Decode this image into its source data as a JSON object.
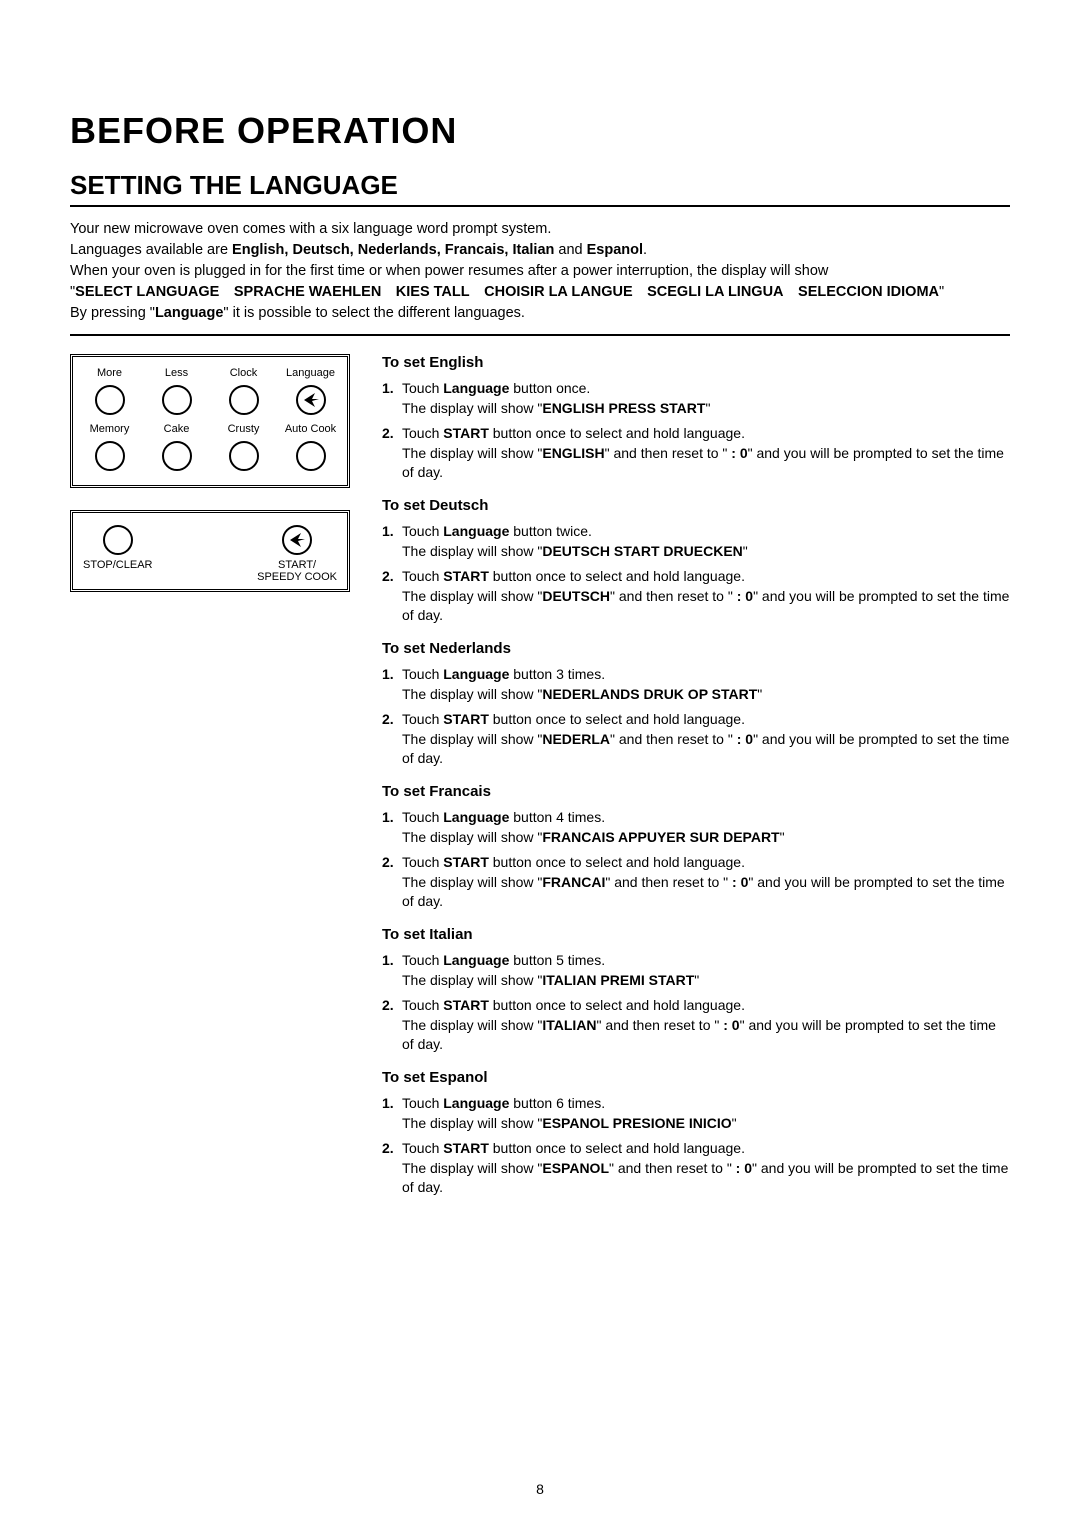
{
  "h1": "BEFORE OPERATION",
  "h2": "SETTING THE LANGUAGE",
  "intro": {
    "line1": "Your new microwave oven comes with a six language word prompt system.",
    "line2a": "Languages available are ",
    "line2b": "English, Deutsch, Nederlands, Francais, Italian",
    "line2c": " and ",
    "line2d": "Espanol",
    "line2e": ".",
    "line3": "When your oven is plugged in for the first time or when power resumes after a power interruption, the display will show",
    "line4a": "\"",
    "line4b": "SELECT LANGUAGE SPRACHE WAEHLEN KIES TALL CHOISIR LA LANGUE SCEGLI LA LINGUA SELECCION IDIOMA",
    "line4c": "\"",
    "line5a": "By pressing \"",
    "line5b": "Language",
    "line5c": "\" it is possible to select the different languages."
  },
  "panel1": {
    "r1": [
      "More",
      "Less",
      "Clock",
      "Language"
    ],
    "r2": [
      "Memory",
      "Cake",
      "Crusty",
      "Auto Cook"
    ]
  },
  "panel2": {
    "left": "STOP/CLEAR",
    "right1": "START/",
    "right2": "SPEEDY COOK"
  },
  "sections": [
    {
      "title": "To set English",
      "steps": [
        {
          "n": "1.",
          "a": "Touch ",
          "b": "Language",
          "c": " button once.",
          "d": "The display will show \"",
          "e": "ENGLISH   PRESS START",
          "f": "\""
        },
        {
          "n": "2.",
          "a": "Touch ",
          "b": "START",
          "c": " button once to select and hold language.",
          "d": "The display will show \"",
          "e": "ENGLISH",
          "f": "\" and then reset to \"",
          "g": " : 0",
          "h": "\" and you will be prompted to set the time of day."
        }
      ]
    },
    {
      "title": "To set Deutsch",
      "steps": [
        {
          "n": "1.",
          "a": "Touch ",
          "b": "Language",
          "c": " button twice.",
          "d": "The display will show \"",
          "e": "DEUTSCH   START DRUECKEN",
          "f": "\""
        },
        {
          "n": "2.",
          "a": "Touch ",
          "b": "START",
          "c": " button once to select and hold language.",
          "d": "The display will show \"",
          "e": "DEUTSCH",
          "f": "\" and then reset to \"",
          "g": " : 0",
          "h": "\" and you will be prompted to set the time of day."
        }
      ]
    },
    {
      "title": "To set Nederlands",
      "steps": [
        {
          "n": "1.",
          "a": "Touch ",
          "b": "Language",
          "c": " button 3 times.",
          "d": "The display will show \"",
          "e": "NEDERLANDS   DRUK OP START",
          "f": "\""
        },
        {
          "n": "2.",
          "a": "Touch ",
          "b": "START",
          "c": " button once to select and hold language.",
          "d": "The display will show \"",
          "e": "NEDERLA",
          "f": "\" and then reset to \"",
          "g": " : 0",
          "h": "\" and you will be prompted to set the time of day."
        }
      ]
    },
    {
      "title": "To set Francais",
      "steps": [
        {
          "n": "1.",
          "a": "Touch ",
          "b": "Language",
          "c": " button 4 times.",
          "d": "The display will show \"",
          "e": "FRANCAIS   APPUYER SUR DEPART",
          "f": "\""
        },
        {
          "n": "2.",
          "a": "Touch ",
          "b": "START",
          "c": " button once to select and hold language.",
          "d": "The display will show \"",
          "e": "FRANCAI",
          "f": "\" and then reset to \"",
          "g": " : 0",
          "h": "\" and you will be prompted to set the time of day."
        }
      ]
    },
    {
      "title": "To set Italian",
      "steps": [
        {
          "n": "1.",
          "a": "Touch ",
          "b": "Language",
          "c": " button 5 times.",
          "d": "The display will show \"",
          "e": "ITALIAN   PREMI START",
          "f": "\""
        },
        {
          "n": "2.",
          "a": "Touch ",
          "b": "START",
          "c": " button once to select and hold language.",
          "d": "The display will show \"",
          "e": "ITALIAN",
          "f": "\" and then reset to \"",
          "g": " : 0",
          "h": "\" and you will be prompted to set the time of day."
        }
      ]
    },
    {
      "title": "To set Espanol",
      "steps": [
        {
          "n": "1.",
          "a": "Touch ",
          "b": "Language",
          "c": " button 6 times.",
          "d": "The display will show \"",
          "e": "ESPANOL   PRESIONE INICIO",
          "f": "\""
        },
        {
          "n": "2.",
          "a": "Touch ",
          "b": "START",
          "c": " button once to select and hold language.",
          "d": "The display will show \"",
          "e": "ESPANOL",
          "f": "\" and then reset to \"",
          "g": " : 0",
          "h": "\" and you will be prompted to set the time of day."
        }
      ]
    }
  ],
  "pageNumber": "8",
  "colors": {
    "text": "#000000",
    "bg": "#ffffff"
  }
}
